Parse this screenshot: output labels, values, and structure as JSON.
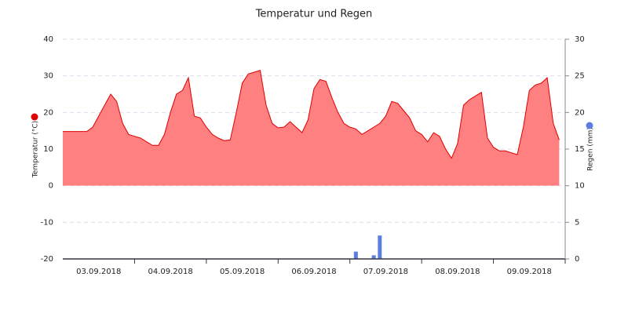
{
  "chart_data": {
    "type": "area-bar",
    "title": "Temperatur und Regen",
    "ylabel": "Temperatur (°C)",
    "y2label": "Regen (mm)",
    "categories": [
      "03.09.2018",
      "04.09.2018",
      "05.09.2018",
      "06.09.2018",
      "07.09.2018",
      "08.09.2018",
      "09.09.2018"
    ],
    "x": [
      "03.09.2018",
      "03.09.2018",
      "03.09.2018",
      "03.09.2018",
      "03.09.2018",
      "03.09.2018",
      "03.09.2018",
      "03.09.2018",
      "03.09.2018",
      "03.09.2018",
      "03.09.2018",
      "03.09.2018",
      "04.09.2018",
      "04.09.2018",
      "04.09.2018",
      "04.09.2018",
      "04.09.2018",
      "04.09.2018",
      "04.09.2018",
      "04.09.2018",
      "04.09.2018",
      "04.09.2018",
      "04.09.2018",
      "04.09.2018",
      "05.09.2018",
      "05.09.2018",
      "05.09.2018",
      "05.09.2018",
      "05.09.2018",
      "05.09.2018",
      "05.09.2018",
      "05.09.2018",
      "05.09.2018",
      "05.09.2018",
      "05.09.2018",
      "05.09.2018",
      "06.09.2018",
      "06.09.2018",
      "06.09.2018",
      "06.09.2018",
      "06.09.2018",
      "06.09.2018",
      "06.09.2018",
      "06.09.2018",
      "06.09.2018",
      "06.09.2018",
      "06.09.2018",
      "06.09.2018",
      "07.09.2018",
      "07.09.2018",
      "07.09.2018",
      "07.09.2018",
      "07.09.2018",
      "07.09.2018",
      "07.09.2018",
      "07.09.2018",
      "07.09.2018",
      "07.09.2018",
      "07.09.2018",
      "07.09.2018",
      "08.09.2018",
      "08.09.2018",
      "08.09.2018",
      "08.09.2018",
      "08.09.2018",
      "08.09.2018",
      "08.09.2018",
      "08.09.2018",
      "08.09.2018",
      "08.09.2018",
      "08.09.2018",
      "08.09.2018",
      "09.09.2018",
      "09.09.2018",
      "09.09.2018",
      "09.09.2018",
      "09.09.2018",
      "09.09.2018",
      "09.09.2018",
      "09.09.2018",
      "09.09.2018",
      "09.09.2018",
      "09.09.2018",
      "09.09.2018"
    ],
    "series": [
      {
        "type": "area",
        "color": "#ff8080",
        "line_color": "#e00000",
        "values": [
          14.8,
          14.8,
          14.8,
          14.8,
          14.8,
          16,
          19,
          22,
          25,
          23,
          17,
          14,
          13.5,
          13,
          12,
          11,
          11,
          14,
          20,
          25,
          26,
          29.5,
          19,
          18.5,
          16,
          14,
          13,
          12.3,
          12.5,
          20,
          28,
          30.5,
          31,
          31.5,
          22,
          17,
          15.8,
          16,
          17.5,
          16,
          14.5,
          18,
          26.5,
          29,
          28.5,
          24,
          20,
          17,
          16,
          15.5,
          14,
          15,
          16,
          17,
          19,
          23,
          22.5,
          20.5,
          18.5,
          15,
          14,
          12,
          14.5,
          13.5,
          10,
          7.5,
          11.5,
          22,
          23.5,
          24.5,
          25.5,
          13,
          10.5,
          9.5,
          9.5,
          9,
          8.5,
          16,
          26,
          27.5,
          28,
          29.5,
          17,
          12.5
        ]
      },
      {
        "type": "bar",
        "axis": "y2",
        "color": "#5b7fe0",
        "values": [
          0,
          0,
          0,
          0,
          0,
          0,
          0,
          0,
          0,
          0,
          0,
          0,
          0,
          0,
          0,
          0,
          0,
          0,
          0,
          0,
          0,
          0,
          0,
          0,
          0,
          0,
          0,
          0,
          0,
          0,
          0,
          0,
          0,
          0,
          0,
          0,
          0,
          0,
          0,
          0,
          0,
          0,
          0,
          0,
          0,
          0,
          0,
          0,
          0,
          1,
          0,
          0,
          0.5,
          3.2,
          0,
          0,
          0,
          0,
          0,
          0,
          0,
          0,
          0,
          0,
          0,
          0,
          0,
          0,
          0,
          0,
          0,
          0,
          0,
          0,
          0,
          0,
          0,
          0,
          0,
          0,
          0,
          0,
          0,
          0
        ]
      }
    ],
    "ylim": [
      -20,
      40
    ],
    "yticks": [
      -20,
      -10,
      0,
      10,
      20,
      30,
      40
    ],
    "y2lim": [
      0,
      30
    ],
    "y2ticks": [
      0,
      5,
      10,
      15,
      20,
      25,
      30
    ],
    "grid": true
  }
}
